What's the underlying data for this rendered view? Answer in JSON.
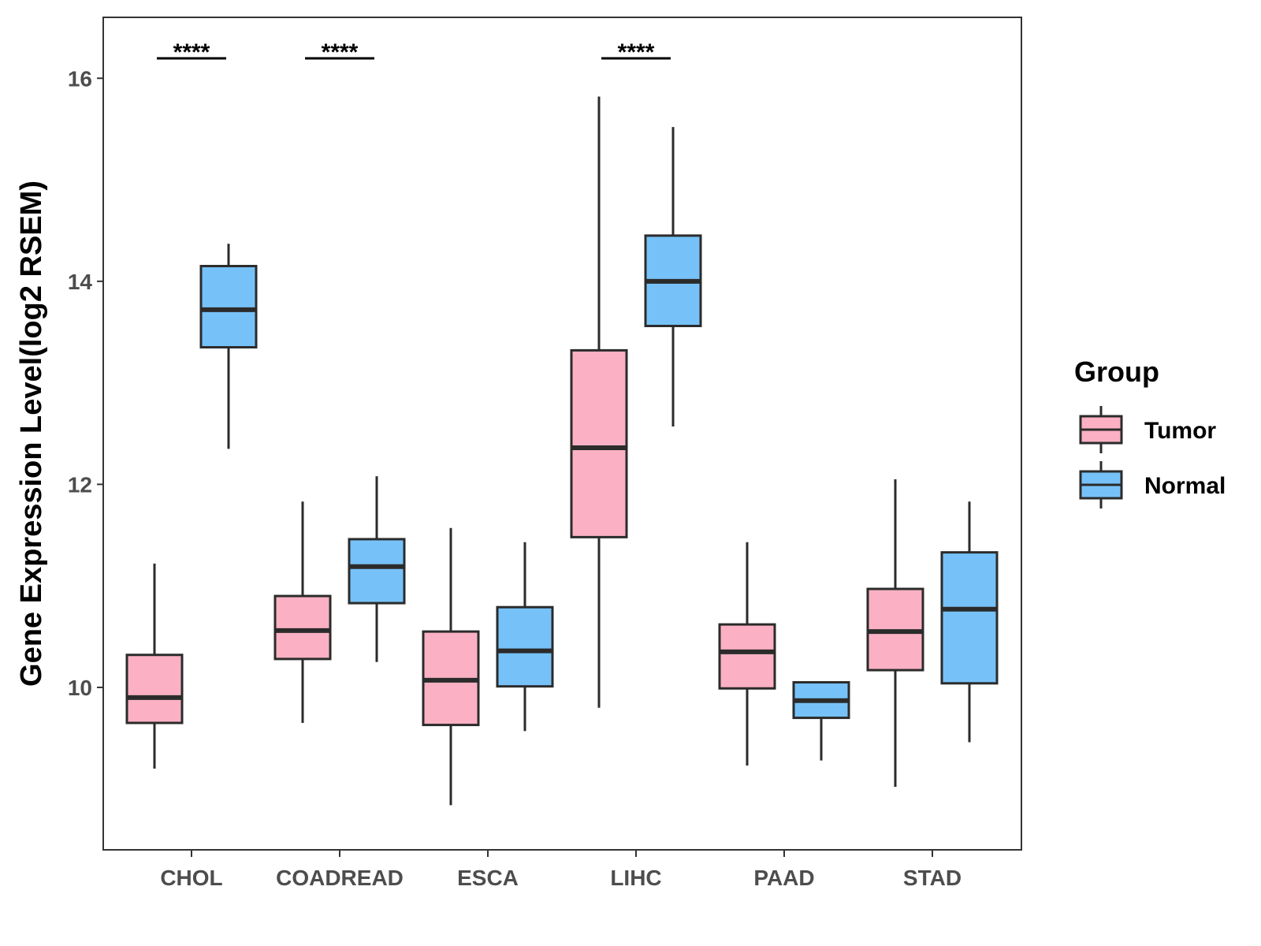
{
  "chart_data": {
    "type": "boxplot",
    "title": "",
    "xlabel": "",
    "ylabel": "Gene Expression Level(log2 RSEM)",
    "ylim": [
      8.4,
      16.6
    ],
    "yticks": [
      10,
      12,
      14,
      16
    ],
    "grid": false,
    "categories": [
      "CHOL",
      "COADREAD",
      "ESCA",
      "LIHC",
      "PAAD",
      "STAD"
    ],
    "legend": {
      "title": "Group",
      "position": "right"
    },
    "colors": {
      "Tumor": "#fbb1c3",
      "Normal": "#76c2f8",
      "outline": "#2b2b2b"
    },
    "series": [
      {
        "name": "Tumor",
        "boxes": [
          {
            "category": "CHOL",
            "min": 9.2,
            "q1": 9.65,
            "median": 9.9,
            "q3": 10.32,
            "max": 11.22
          },
          {
            "category": "COADREAD",
            "min": 9.65,
            "q1": 10.28,
            "median": 10.56,
            "q3": 10.9,
            "max": 11.83
          },
          {
            "category": "ESCA",
            "min": 8.84,
            "q1": 9.63,
            "median": 10.07,
            "q3": 10.55,
            "max": 11.57
          },
          {
            "category": "LIHC",
            "min": 9.8,
            "q1": 11.48,
            "median": 12.36,
            "q3": 13.32,
            "max": 15.82
          },
          {
            "category": "PAAD",
            "min": 9.23,
            "q1": 9.99,
            "median": 10.35,
            "q3": 10.62,
            "max": 11.43
          },
          {
            "category": "STAD",
            "min": 9.02,
            "q1": 10.17,
            "median": 10.55,
            "q3": 10.97,
            "max": 12.05
          }
        ]
      },
      {
        "name": "Normal",
        "boxes": [
          {
            "category": "CHOL",
            "min": 12.35,
            "q1": 13.35,
            "median": 13.72,
            "q3": 14.15,
            "max": 14.37
          },
          {
            "category": "COADREAD",
            "min": 10.25,
            "q1": 10.83,
            "median": 11.19,
            "q3": 11.46,
            "max": 12.08
          },
          {
            "category": "ESCA",
            "min": 9.57,
            "q1": 10.01,
            "median": 10.36,
            "q3": 10.79,
            "max": 11.43
          },
          {
            "category": "LIHC",
            "min": 12.57,
            "q1": 13.56,
            "median": 14.0,
            "q3": 14.45,
            "max": 15.52
          },
          {
            "category": "PAAD",
            "min": 9.28,
            "q1": 9.7,
            "median": 9.87,
            "q3": 10.05,
            "max": 10.05
          },
          {
            "category": "STAD",
            "min": 9.46,
            "q1": 10.04,
            "median": 10.77,
            "q3": 11.33,
            "max": 11.83
          }
        ]
      }
    ],
    "significance": [
      {
        "category": "CHOL",
        "label": "****"
      },
      {
        "category": "COADREAD",
        "label": "****"
      },
      {
        "category": "LIHC",
        "label": "****"
      }
    ]
  }
}
